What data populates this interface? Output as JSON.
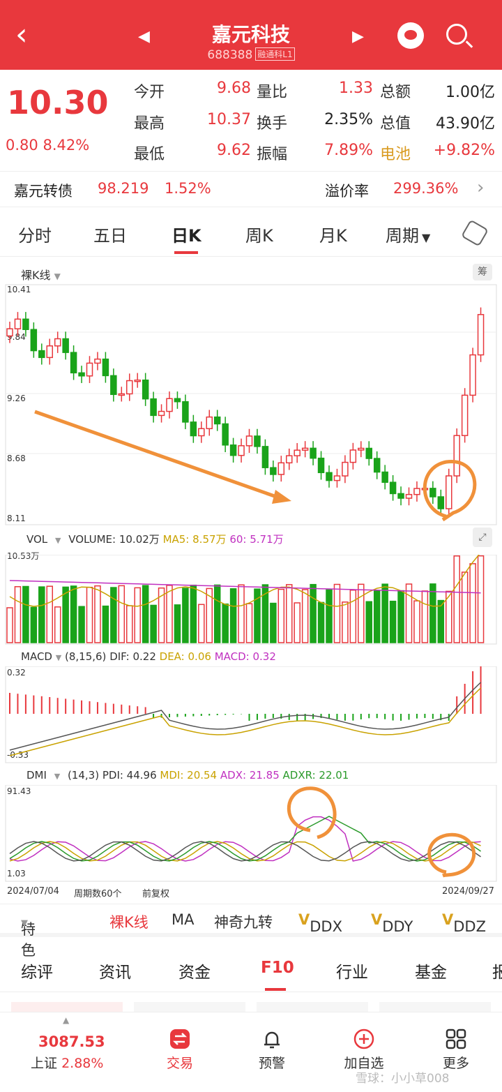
{
  "header": {
    "title": "嘉元科技",
    "code": "688388",
    "tag": "融通科L1"
  },
  "quote": {
    "price": "10.30",
    "change": "0.80",
    "change_pct": "8.42%",
    "rows": [
      {
        "l1": "今开",
        "v1": "9.68",
        "l2": "量比",
        "v2": "1.33",
        "l3": "总额",
        "v3": "1.00亿"
      },
      {
        "l1": "最高",
        "v1": "10.37",
        "l2": "换手",
        "v2": "2.35%",
        "l3": "总值",
        "v3": "43.90亿"
      },
      {
        "l1": "最低",
        "v1": "9.62",
        "l2": "振幅",
        "v2": "7.89%",
        "l3": "电池",
        "v3": "+9.82%"
      }
    ]
  },
  "bond": {
    "name": "嘉元转债",
    "price": "98.219",
    "pct": "1.52%",
    "prem_label": "溢价率",
    "prem": "299.36%"
  },
  "tabs": [
    "分时",
    "五日",
    "日K",
    "周K",
    "月K",
    "周期"
  ],
  "kline": {
    "label": "裸K线",
    "eq_btn": "筹",
    "ticks": [
      "10.41",
      "9.84",
      "9.26",
      "8.68",
      "8.11"
    ]
  },
  "vol": {
    "label": "VOL",
    "volume": "VOLUME: 10.02万",
    "ma5": "MA5: 8.57万",
    "ma60": "60: 5.71万",
    "top": "10.53万"
  },
  "macd": {
    "label": "MACD",
    "params": "(8,15,6)",
    "dif": "DIF: 0.22",
    "dea": "DEA: 0.06",
    "macd": "MACD: 0.32",
    "top": "0.32",
    "bottom": "-0.33"
  },
  "dmi": {
    "label": "DMI",
    "params": "(14,3)",
    "pdi": "PDI: 44.96",
    "mdi": "MDI: 20.54",
    "adx": "ADX: 21.85",
    "adxr": "ADXR: 22.01",
    "top": "91.43",
    "bottom": "1.03"
  },
  "footer_axis": {
    "start": "2024/07/04",
    "count": "周期数60个",
    "adj": "前复权",
    "end": "2024/09/27"
  },
  "indicators": [
    "特色",
    "裸K线",
    "MA",
    "神奇九转",
    "DDX",
    "DDY",
    "DDZ"
  ],
  "sub_tabs": [
    "综评",
    "资讯",
    "资金",
    "F10",
    "行业",
    "基金",
    "报"
  ],
  "bottom": {
    "index_value": "3087.53",
    "index_name": "上证",
    "index_pct": "2.88%",
    "items": [
      "交易",
      "预警",
      "加自选",
      "更多"
    ],
    "watermark": "雪球：小小草008"
  },
  "colors": {
    "up": "#e8383d",
    "down": "#1aa31a",
    "accent": "#f0913a"
  }
}
